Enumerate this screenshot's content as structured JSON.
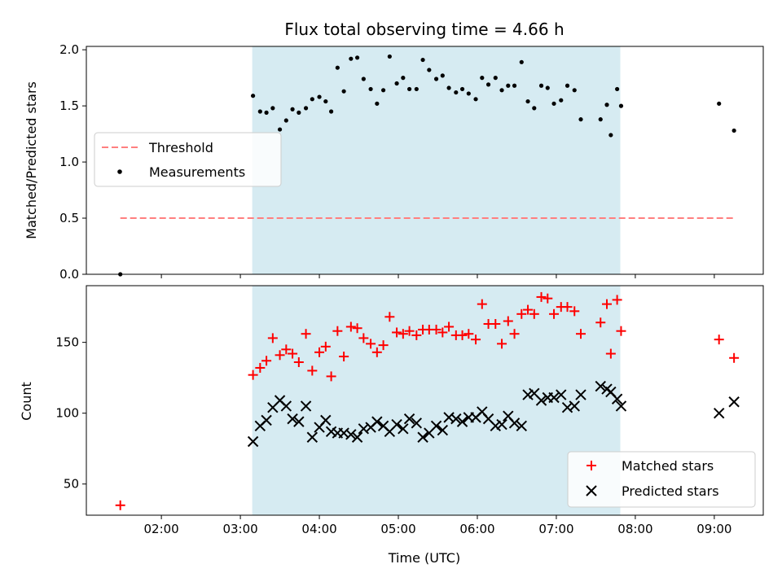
{
  "chart_data": [
    {
      "type": "scatter",
      "title": "Flux total observing time = 4.66 h",
      "xlabel": "",
      "ylabel": "Matched/Predicted stars",
      "ylim": [
        0,
        2.03
      ],
      "yticks": [
        "0.0",
        "0.5",
        "1.0",
        "1.5",
        "2.0"
      ],
      "xticks": [
        "02:00",
        "03:00",
        "04:00",
        "05:00",
        "06:00",
        "07:00",
        "08:00",
        "09:00"
      ],
      "xlim_hours": [
        1.05,
        9.62
      ],
      "shaded_span_hours": [
        3.15,
        7.81
      ],
      "shade_color": "#add8e6",
      "legend_position": "center-left",
      "threshold": {
        "name": "Threshold",
        "value": 0.5,
        "x_range_hours": [
          1.48,
          9.25
        ],
        "color": "#ff7f7f"
      },
      "measurements": {
        "name": "Measurements",
        "color": "#000000",
        "points": [
          [
            1.48,
            0.0
          ],
          [
            3.16,
            1.59
          ],
          [
            3.25,
            1.45
          ],
          [
            3.33,
            1.44
          ],
          [
            3.41,
            1.48
          ],
          [
            3.5,
            1.29
          ],
          [
            3.58,
            1.37
          ],
          [
            3.66,
            1.47
          ],
          [
            3.74,
            1.44
          ],
          [
            3.83,
            1.48
          ],
          [
            3.91,
            1.56
          ],
          [
            4.0,
            1.58
          ],
          [
            4.08,
            1.54
          ],
          [
            4.15,
            1.45
          ],
          [
            4.23,
            1.84
          ],
          [
            4.31,
            1.63
          ],
          [
            4.4,
            1.92
          ],
          [
            4.48,
            1.93
          ],
          [
            4.56,
            1.74
          ],
          [
            4.65,
            1.65
          ],
          [
            4.73,
            1.52
          ],
          [
            4.81,
            1.64
          ],
          [
            4.89,
            1.94
          ],
          [
            4.98,
            1.7
          ],
          [
            5.06,
            1.75
          ],
          [
            5.14,
            1.65
          ],
          [
            5.23,
            1.65
          ],
          [
            5.31,
            1.91
          ],
          [
            5.39,
            1.82
          ],
          [
            5.48,
            1.74
          ],
          [
            5.56,
            1.77
          ],
          [
            5.64,
            1.66
          ],
          [
            5.73,
            1.62
          ],
          [
            5.81,
            1.65
          ],
          [
            5.89,
            1.61
          ],
          [
            5.98,
            1.56
          ],
          [
            6.06,
            1.75
          ],
          [
            6.14,
            1.69
          ],
          [
            6.23,
            1.75
          ],
          [
            6.31,
            1.64
          ],
          [
            6.39,
            1.68
          ],
          [
            6.47,
            1.68
          ],
          [
            6.56,
            1.89
          ],
          [
            6.64,
            1.54
          ],
          [
            6.72,
            1.48
          ],
          [
            6.81,
            1.68
          ],
          [
            6.89,
            1.66
          ],
          [
            6.97,
            1.52
          ],
          [
            7.06,
            1.55
          ],
          [
            7.14,
            1.68
          ],
          [
            7.23,
            1.64
          ],
          [
            7.31,
            1.38
          ],
          [
            7.56,
            1.38
          ],
          [
            7.64,
            1.51
          ],
          [
            7.69,
            1.24
          ],
          [
            7.77,
            1.65
          ],
          [
            7.82,
            1.5
          ],
          [
            9.06,
            1.52
          ],
          [
            9.25,
            1.28
          ]
        ]
      }
    },
    {
      "type": "scatter",
      "title": "",
      "xlabel": "Time (UTC)",
      "ylabel": "Count",
      "ylim": [
        28,
        190
      ],
      "yticks": [
        "50",
        "100",
        "150"
      ],
      "xticks": [
        "02:00",
        "03:00",
        "04:00",
        "05:00",
        "06:00",
        "07:00",
        "08:00",
        "09:00"
      ],
      "xlim_hours": [
        1.05,
        9.62
      ],
      "shaded_span_hours": [
        3.15,
        7.81
      ],
      "shade_color": "#add8e6",
      "legend_position": "lower-right",
      "series": [
        {
          "name": "Matched stars",
          "marker": "plus",
          "color": "#ff0000",
          "points": [
            [
              1.48,
              35
            ],
            [
              3.16,
              127
            ],
            [
              3.25,
              132
            ],
            [
              3.33,
              137
            ],
            [
              3.41,
              153
            ],
            [
              3.5,
              141
            ],
            [
              3.58,
              145
            ],
            [
              3.66,
              142
            ],
            [
              3.74,
              136
            ],
            [
              3.83,
              156
            ],
            [
              3.91,
              130
            ],
            [
              4.0,
              143
            ],
            [
              4.08,
              147
            ],
            [
              4.15,
              126
            ],
            [
              4.23,
              158
            ],
            [
              4.31,
              140
            ],
            [
              4.4,
              161
            ],
            [
              4.48,
              160
            ],
            [
              4.56,
              153
            ],
            [
              4.65,
              149
            ],
            [
              4.73,
              143
            ],
            [
              4.81,
              148
            ],
            [
              4.89,
              168
            ],
            [
              4.98,
              157
            ],
            [
              5.06,
              156
            ],
            [
              5.14,
              158
            ],
            [
              5.23,
              155
            ],
            [
              5.31,
              159
            ],
            [
              5.39,
              159
            ],
            [
              5.48,
              159
            ],
            [
              5.56,
              157
            ],
            [
              5.64,
              161
            ],
            [
              5.73,
              155
            ],
            [
              5.81,
              155
            ],
            [
              5.89,
              156
            ],
            [
              5.98,
              152
            ],
            [
              6.06,
              177
            ],
            [
              6.14,
              163
            ],
            [
              6.23,
              163
            ],
            [
              6.31,
              149
            ],
            [
              6.39,
              165
            ],
            [
              6.47,
              156
            ],
            [
              6.56,
              170
            ],
            [
              6.64,
              173
            ],
            [
              6.72,
              170
            ],
            [
              6.81,
              182
            ],
            [
              6.89,
              181
            ],
            [
              6.97,
              170
            ],
            [
              7.06,
              175
            ],
            [
              7.14,
              175
            ],
            [
              7.23,
              172
            ],
            [
              7.31,
              156
            ],
            [
              7.56,
              164
            ],
            [
              7.64,
              177
            ],
            [
              7.69,
              142
            ],
            [
              7.77,
              180
            ],
            [
              7.82,
              158
            ],
            [
              9.06,
              152
            ],
            [
              9.25,
              139
            ]
          ]
        },
        {
          "name": "Predicted stars",
          "marker": "x",
          "color": "#000000",
          "points": [
            [
              3.16,
              80
            ],
            [
              3.25,
              91
            ],
            [
              3.33,
              95
            ],
            [
              3.41,
              104
            ],
            [
              3.5,
              109
            ],
            [
              3.58,
              105
            ],
            [
              3.66,
              96
            ],
            [
              3.74,
              94
            ],
            [
              3.83,
              105
            ],
            [
              3.91,
              83
            ],
            [
              4.0,
              90
            ],
            [
              4.08,
              95
            ],
            [
              4.15,
              87
            ],
            [
              4.23,
              86
            ],
            [
              4.31,
              86
            ],
            [
              4.4,
              85
            ],
            [
              4.48,
              83
            ],
            [
              4.56,
              89
            ],
            [
              4.65,
              90
            ],
            [
              4.73,
              94
            ],
            [
              4.81,
              91
            ],
            [
              4.89,
              87
            ],
            [
              4.98,
              92
            ],
            [
              5.06,
              89
            ],
            [
              5.14,
              96
            ],
            [
              5.23,
              93
            ],
            [
              5.31,
              83
            ],
            [
              5.39,
              86
            ],
            [
              5.48,
              91
            ],
            [
              5.56,
              88
            ],
            [
              5.64,
              97
            ],
            [
              5.73,
              96
            ],
            [
              5.81,
              94
            ],
            [
              5.89,
              97
            ],
            [
              5.98,
              97
            ],
            [
              6.06,
              101
            ],
            [
              6.14,
              96
            ],
            [
              6.23,
              91
            ],
            [
              6.31,
              92
            ],
            [
              6.39,
              98
            ],
            [
              6.47,
              93
            ],
            [
              6.56,
              91
            ],
            [
              6.64,
              113
            ],
            [
              6.72,
              114
            ],
            [
              6.81,
              109
            ],
            [
              6.89,
              111
            ],
            [
              6.97,
              111
            ],
            [
              7.06,
              113
            ],
            [
              7.14,
              104
            ],
            [
              7.23,
              105
            ],
            [
              7.31,
              113
            ],
            [
              7.56,
              119
            ],
            [
              7.64,
              117
            ],
            [
              7.69,
              115
            ],
            [
              7.77,
              110
            ],
            [
              7.82,
              105
            ],
            [
              9.06,
              100
            ],
            [
              9.25,
              108
            ]
          ]
        }
      ]
    }
  ]
}
